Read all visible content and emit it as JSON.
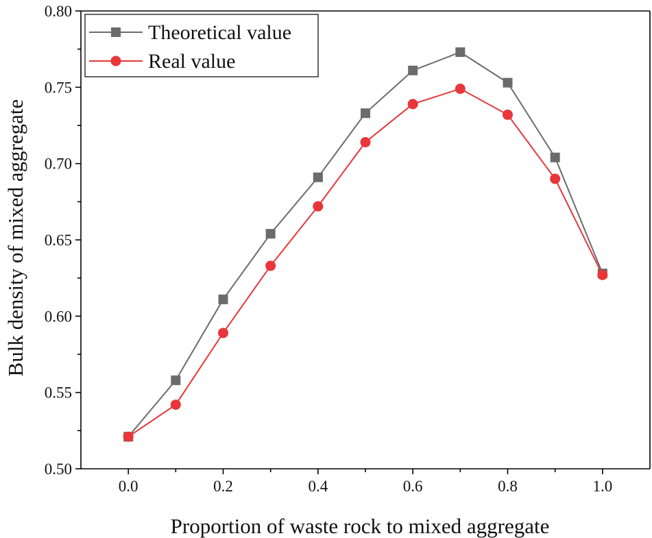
{
  "chart_data": {
    "type": "line",
    "title": "",
    "xlabel": "Proportion of waste rock to mixed aggregate",
    "ylabel": "Bulk density of mixed aggregate",
    "xlim": [
      -0.1,
      1.1
    ],
    "ylim": [
      0.5,
      0.8
    ],
    "x": [
      0.0,
      0.1,
      0.2,
      0.3,
      0.4,
      0.5,
      0.6,
      0.7,
      0.8,
      0.9,
      1.0
    ],
    "x_ticks": [
      {
        "value": 0.0,
        "label": "0.0"
      },
      {
        "value": 0.2,
        "label": "0.2"
      },
      {
        "value": 0.4,
        "label": "0.4"
      },
      {
        "value": 0.6,
        "label": "0.6"
      },
      {
        "value": 0.8,
        "label": "0.8"
      },
      {
        "value": 1.0,
        "label": "1.0"
      }
    ],
    "y_ticks": [
      {
        "value": 0.5,
        "label": "0.50"
      },
      {
        "value": 0.55,
        "label": "0.55"
      },
      {
        "value": 0.6,
        "label": "0.60"
      },
      {
        "value": 0.65,
        "label": "0.65"
      },
      {
        "value": 0.7,
        "label": "0.70"
      },
      {
        "value": 0.75,
        "label": "0.75"
      },
      {
        "value": 0.8,
        "label": "0.80"
      }
    ],
    "grid": false,
    "legend_position": "top-left",
    "series": [
      {
        "name": "Theoretical value",
        "marker": "square",
        "color": "#6b6b6b",
        "values": [
          0.521,
          0.558,
          0.611,
          0.654,
          0.691,
          0.733,
          0.761,
          0.773,
          0.753,
          0.704,
          0.628
        ]
      },
      {
        "name": "Real value",
        "marker": "circle",
        "color": "#e8363a",
        "values": [
          0.521,
          0.542,
          0.589,
          0.633,
          0.672,
          0.714,
          0.739,
          0.749,
          0.732,
          0.69,
          0.627
        ]
      }
    ]
  }
}
